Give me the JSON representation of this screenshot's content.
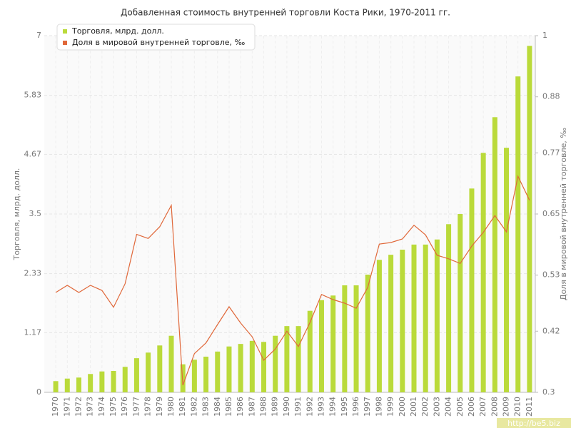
{
  "chart_data": {
    "type": "bar-line",
    "title": "Добавленная стоимость внутренней торговли Коста Рики, 1970-2011 гг.",
    "y_label": "Торговля, млрд. долл.",
    "y2_label": "Доля в мировой внутренней торговле, ‰",
    "watermark": "http://be5.biz",
    "categories": [
      "1970",
      "1971",
      "1972",
      "1973",
      "1974",
      "1975",
      "1976",
      "1977",
      "1978",
      "1979",
      "1980",
      "1981",
      "1982",
      "1983",
      "1984",
      "1985",
      "1986",
      "1987",
      "1988",
      "1989",
      "1990",
      "1991",
      "1992",
      "1993",
      "1994",
      "1995",
      "1996",
      "1997",
      "1998",
      "1999",
      "2000",
      "2001",
      "2002",
      "2003",
      "2004",
      "2005",
      "2006",
      "2007",
      "2008",
      "2009",
      "2010",
      "2011"
    ],
    "series": [
      {
        "name": "Торговля, млрд. долл.",
        "type": "bar",
        "color": "#bada3a",
        "axis": "y",
        "values": [
          0.22,
          0.27,
          0.29,
          0.36,
          0.41,
          0.42,
          0.5,
          0.67,
          0.78,
          0.92,
          1.11,
          0.55,
          0.64,
          0.7,
          0.8,
          0.9,
          0.95,
          1.01,
          0.99,
          1.11,
          1.3,
          1.3,
          1.6,
          1.81,
          1.9,
          2.1,
          2.1,
          2.31,
          2.6,
          2.7,
          2.8,
          2.9,
          2.9,
          3.0,
          3.3,
          3.5,
          4.0,
          4.7,
          5.4,
          4.8,
          6.2,
          6.8
        ]
      },
      {
        "name": "Доля в мировой внутренней торговле, ‰",
        "type": "line",
        "color": "#e0683a",
        "axis": "y2",
        "values": [
          0.496,
          0.51,
          0.496,
          0.51,
          0.5,
          0.467,
          0.513,
          0.61,
          0.602,
          0.625,
          0.667,
          0.314,
          0.376,
          0.397,
          0.433,
          0.468,
          0.436,
          0.409,
          0.363,
          0.385,
          0.42,
          0.39,
          0.437,
          0.492,
          0.482,
          0.475,
          0.465,
          0.506,
          0.591,
          0.594,
          0.601,
          0.628,
          0.609,
          0.569,
          0.562,
          0.553,
          0.587,
          0.614,
          0.647,
          0.615,
          0.724,
          0.677
        ]
      }
    ],
    "ylim": [
      0,
      7
    ],
    "yticks": [
      0,
      1.17,
      2.33,
      3.5,
      4.67,
      5.83,
      7
    ],
    "y2lim": [
      0.3,
      1
    ],
    "y2ticks": [
      0.3,
      0.42,
      0.53,
      0.65,
      0.77,
      0.88,
      1
    ],
    "grid": true,
    "legend": "top-left"
  }
}
